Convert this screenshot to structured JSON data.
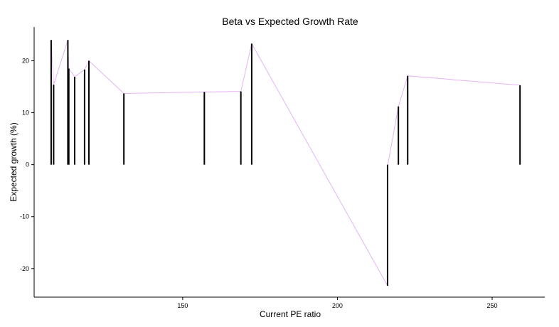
{
  "chart_data": {
    "type": "line",
    "title": "Beta vs Expected Growth Rate",
    "xlabel": "Current PE ratio",
    "ylabel": "Expected growth (%)",
    "xlim": [
      102,
      267
    ],
    "ylim": [
      -25.5,
      26.5
    ],
    "x_ticks": [
      150,
      200,
      250
    ],
    "y_ticks": [
      -20,
      -10,
      0,
      10,
      20
    ],
    "grid": false,
    "line_color": "#e6b3f5",
    "bar_color": "#000000",
    "series": [
      {
        "values": [
          {
            "x": 107.5,
            "y": 24.0
          },
          {
            "x": 108.3,
            "y": 15.4
          },
          {
            "x": 112.9,
            "y": 24.0
          },
          {
            "x": 113.2,
            "y": 18.5
          },
          {
            "x": 115.1,
            "y": 16.9
          },
          {
            "x": 118.3,
            "y": 18.3
          },
          {
            "x": 119.7,
            "y": 20.0
          },
          {
            "x": 131.0,
            "y": 13.7
          },
          {
            "x": 157.0,
            "y": 14.0
          },
          {
            "x": 168.8,
            "y": 14.1
          },
          {
            "x": 172.3,
            "y": 23.3
          },
          {
            "x": 216.2,
            "y": -23.3
          },
          {
            "x": 216.3,
            "y": 0.0
          },
          {
            "x": 219.7,
            "y": 11.2
          },
          {
            "x": 222.7,
            "y": 17.1
          },
          {
            "x": 259.0,
            "y": 15.3
          }
        ]
      }
    ]
  }
}
